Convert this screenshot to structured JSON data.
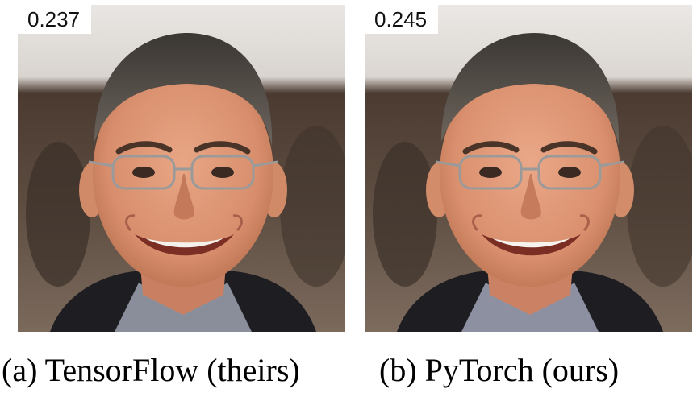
{
  "panels": [
    {
      "score": "0.237",
      "caption": "(a) TensorFlow (theirs)"
    },
    {
      "score": "0.245",
      "caption": "(b) PyTorch (ours)"
    }
  ]
}
